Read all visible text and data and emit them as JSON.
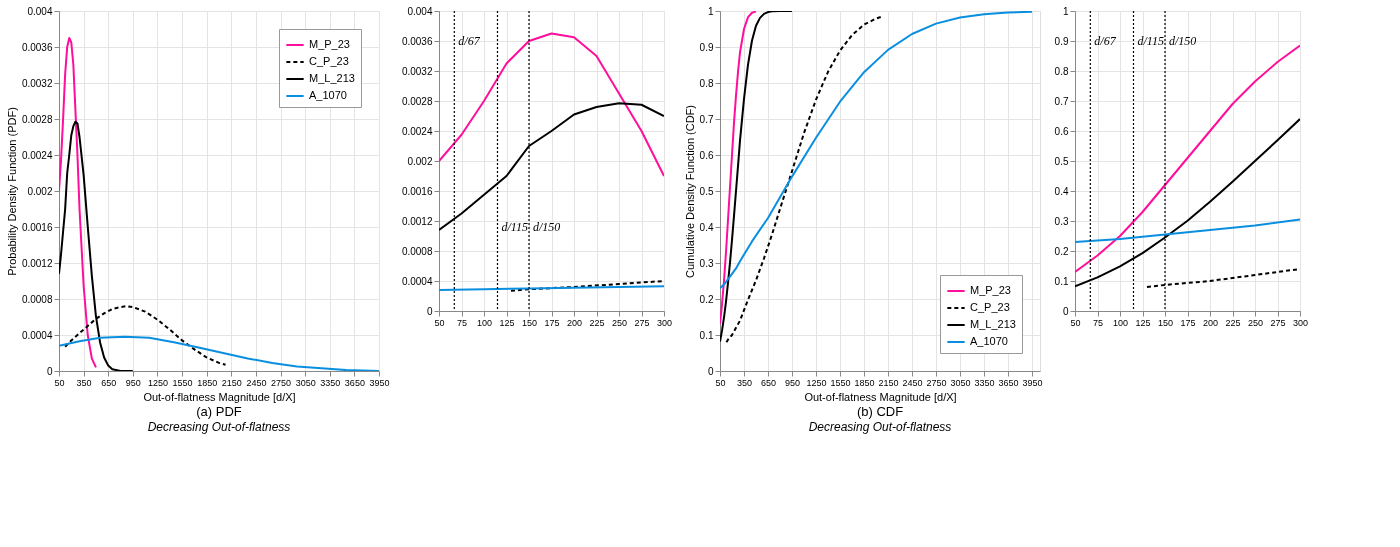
{
  "chart_data": [
    {
      "type": "line",
      "title": "(a) PDF",
      "xlabel": "Out-of-flatness Magnitude [d/X]",
      "ylabel": "Probability Density Function (PDF)",
      "annotations": [
        "Decreasing Out-of-flatness"
      ],
      "xlim": [
        50,
        3950
      ],
      "xticks": [
        50,
        350,
        650,
        950,
        1250,
        1550,
        1850,
        2150,
        2450,
        2750,
        3050,
        3350,
        3650,
        3950
      ],
      "ylim": [
        0,
        0.004
      ],
      "yticks": [
        0,
        0.0004,
        0.0008,
        0.0012,
        0.0016,
        0.002,
        0.0024,
        0.0028,
        0.0032,
        0.0036,
        0.004
      ],
      "grid": true,
      "legend": "top right",
      "series": [
        {
          "name": "M_P_23",
          "color": "#ff0d9b",
          "line_style": "solid",
          "x": [
            50,
            75,
            100,
            125,
            150,
            175,
            200,
            225,
            250,
            275,
            300,
            350,
            400,
            450,
            500
          ],
          "values": [
            0.002,
            0.00235,
            0.0028,
            0.0033,
            0.0036,
            0.0037,
            0.00365,
            0.0034,
            0.0029,
            0.0024,
            0.0018,
            0.00095,
            0.0004,
            0.00014,
            4e-05
          ]
        },
        {
          "name": "C_P_23",
          "color": "#000000",
          "line_style": "dashed",
          "x": [
            125,
            200,
            300,
            400,
            500,
            600,
            700,
            800,
            870,
            950,
            1100,
            1250,
            1400,
            1550,
            1700,
            1850,
            2000,
            2080
          ],
          "values": [
            0.00027,
            0.00034,
            0.00042,
            0.0005,
            0.00058,
            0.00064,
            0.00069,
            0.00071,
            0.00072,
            0.00071,
            0.00066,
            0.00057,
            0.00046,
            0.00034,
            0.00024,
            0.00015,
            9e-05,
            7e-05
          ]
        },
        {
          "name": "M_L_213",
          "color": "#000000",
          "line_style": "solid",
          "x": [
            50,
            75,
            100,
            125,
            150,
            175,
            200,
            225,
            250,
            275,
            300,
            350,
            400,
            450,
            500,
            550,
            600,
            650,
            700,
            800,
            950
          ],
          "values": [
            0.00108,
            0.0013,
            0.00155,
            0.0018,
            0.0022,
            0.0024,
            0.00262,
            0.00272,
            0.00277,
            0.00275,
            0.0026,
            0.00218,
            0.00161,
            0.00106,
            0.00061,
            0.00032,
            0.00015,
            6e-05,
            2e-05,
            0,
            0
          ]
        },
        {
          "name": "A_1070",
          "color": "#0a8fe0",
          "line_style": "solid",
          "x": [
            50,
            300,
            550,
            850,
            1150,
            1450,
            1750,
            2050,
            2350,
            2650,
            2950,
            3250,
            3550,
            3950
          ],
          "values": [
            0.00028,
            0.00033,
            0.00037,
            0.00038,
            0.00037,
            0.00032,
            0.00026,
            0.0002,
            0.00014,
            9e-05,
            5e-05,
            3e-05,
            1e-05,
            0
          ]
        }
      ]
    },
    {
      "type": "line",
      "xlim": [
        50,
        300
      ],
      "xticks": [
        50,
        75,
        100,
        125,
        150,
        175,
        200,
        225,
        250,
        275,
        300
      ],
      "ylim": [
        0,
        0.004
      ],
      "yticks": [
        0,
        0.0004,
        0.0008,
        0.0012,
        0.0016,
        0.002,
        0.0024,
        0.0028,
        0.0032,
        0.0036,
        0.004
      ],
      "grid": true,
      "ref_lines": [
        {
          "axis": "x",
          "value": 67,
          "label": "d/67",
          "line_style": "dotted",
          "color": "#000000"
        },
        {
          "axis": "x",
          "value": 115,
          "label": "d/115",
          "line_style": "dotted",
          "color": "#000000"
        },
        {
          "axis": "x",
          "value": 150,
          "label": "d/150",
          "line_style": "dotted",
          "color": "#000000"
        }
      ],
      "series": [
        {
          "color": "#ff0d9b",
          "line_style": "solid",
          "x": [
            50,
            75,
            100,
            125,
            150,
            175,
            200,
            225,
            250,
            275,
            300
          ],
          "values": [
            0.002,
            0.00235,
            0.0028,
            0.0033,
            0.0036,
            0.0037,
            0.00365,
            0.0034,
            0.0029,
            0.0024,
            0.0018
          ]
        },
        {
          "color": "#000000",
          "line_style": "dashed",
          "x": [
            130,
            150,
            200,
            250,
            300
          ],
          "values": [
            0.00027,
            0.00029,
            0.00032,
            0.00036,
            0.0004
          ]
        },
        {
          "color": "#000000",
          "line_style": "solid",
          "x": [
            50,
            75,
            100,
            125,
            150,
            175,
            200,
            225,
            250,
            275,
            300
          ],
          "values": [
            0.00108,
            0.0013,
            0.00155,
            0.0018,
            0.0022,
            0.0024,
            0.00262,
            0.00272,
            0.00277,
            0.00275,
            0.0026
          ]
        },
        {
          "color": "#0a8fe0",
          "line_style": "solid",
          "x": [
            50,
            100,
            150,
            200,
            250,
            300
          ],
          "values": [
            0.00028,
            0.00029,
            0.0003,
            0.00031,
            0.00032,
            0.00033
          ]
        }
      ]
    },
    {
      "type": "line",
      "title": "(b) CDF",
      "xlabel": "Out-of-flatness Magnitude [d/X]",
      "ylabel": "Cumulative Density Function (CDF)",
      "annotations": [
        "Decreasing Out-of-flatness"
      ],
      "xlim": [
        50,
        4050
      ],
      "xticks": [
        50,
        350,
        650,
        950,
        1250,
        1550,
        1850,
        2150,
        2450,
        2750,
        3050,
        3350,
        3650,
        3950
      ],
      "ylim": [
        0,
        1
      ],
      "yticks": [
        0,
        0.1,
        0.2,
        0.3,
        0.4,
        0.5,
        0.6,
        0.7,
        0.8,
        0.9,
        1
      ],
      "grid": true,
      "legend": "bottom right",
      "series": [
        {
          "name": "M_P_23",
          "color": "#ff0d9b",
          "line_style": "solid",
          "x": [
            50,
            75,
            100,
            125,
            150,
            175,
            200,
            225,
            250,
            275,
            300,
            350,
            400,
            450,
            500
          ],
          "values": [
            0.13,
            0.185,
            0.25,
            0.33,
            0.42,
            0.51,
            0.6,
            0.69,
            0.765,
            0.83,
            0.885,
            0.95,
            0.983,
            0.995,
            0.999
          ]
        },
        {
          "name": "C_P_23",
          "color": "#000000",
          "line_style": "dashed",
          "x": [
            130,
            150,
            200,
            250,
            300,
            400,
            500,
            600,
            700,
            800,
            950,
            1100,
            1250,
            1400,
            1550,
            1700,
            1850,
            2000,
            2080
          ],
          "values": [
            0.08,
            0.087,
            0.1,
            0.12,
            0.14,
            0.198,
            0.252,
            0.313,
            0.379,
            0.45,
            0.555,
            0.661,
            0.754,
            0.831,
            0.89,
            0.933,
            0.962,
            0.979,
            0.985
          ]
        },
        {
          "name": "M_L_213",
          "color": "#000000",
          "line_style": "solid",
          "x": [
            50,
            75,
            100,
            125,
            150,
            175,
            200,
            225,
            250,
            275,
            300,
            350,
            400,
            450,
            500,
            550,
            600,
            650,
            700,
            800,
            950
          ],
          "values": [
            0.082,
            0.112,
            0.149,
            0.193,
            0.245,
            0.301,
            0.364,
            0.431,
            0.5,
            0.569,
            0.64,
            0.756,
            0.851,
            0.918,
            0.959,
            0.981,
            0.992,
            0.997,
            0.999,
            1,
            1
          ]
        },
        {
          "name": "A_1070",
          "color": "#0a8fe0",
          "line_style": "solid",
          "x": [
            50,
            100,
            150,
            200,
            250,
            300,
            450,
            650,
            950,
            1250,
            1550,
            1850,
            2150,
            2450,
            2750,
            3050,
            3350,
            3650,
            3950
          ],
          "values": [
            0.23,
            0.24,
            0.255,
            0.27,
            0.285,
            0.305,
            0.36,
            0.425,
            0.54,
            0.648,
            0.748,
            0.83,
            0.892,
            0.936,
            0.965,
            0.982,
            0.991,
            0.996,
            0.998
          ]
        }
      ]
    },
    {
      "type": "line",
      "xlim": [
        50,
        300
      ],
      "xticks": [
        50,
        75,
        100,
        125,
        150,
        175,
        200,
        225,
        250,
        275,
        300
      ],
      "ylim": [
        0,
        1
      ],
      "yticks": [
        0,
        0.1,
        0.2,
        0.3,
        0.4,
        0.5,
        0.6,
        0.7,
        0.8,
        0.9,
        1
      ],
      "grid": true,
      "ref_lines": [
        {
          "axis": "x",
          "value": 67,
          "label": "d/67",
          "line_style": "dotted",
          "color": "#000000"
        },
        {
          "axis": "x",
          "value": 115,
          "label": "d/115",
          "line_style": "dotted",
          "color": "#000000"
        },
        {
          "axis": "x",
          "value": 150,
          "label": "d/150",
          "line_style": "dotted",
          "color": "#000000"
        }
      ],
      "series": [
        {
          "color": "#ff0d9b",
          "line_style": "solid",
          "x": [
            50,
            75,
            100,
            125,
            150,
            175,
            200,
            225,
            250,
            275,
            300
          ],
          "values": [
            0.13,
            0.185,
            0.25,
            0.33,
            0.42,
            0.51,
            0.6,
            0.69,
            0.765,
            0.83,
            0.885
          ]
        },
        {
          "color": "#000000",
          "line_style": "dashed",
          "x": [
            130,
            150,
            200,
            250,
            300
          ],
          "values": [
            0.08,
            0.087,
            0.1,
            0.12,
            0.14
          ]
        },
        {
          "color": "#000000",
          "line_style": "solid",
          "x": [
            50,
            75,
            100,
            125,
            150,
            175,
            200,
            225,
            250,
            275,
            300
          ],
          "values": [
            0.082,
            0.112,
            0.149,
            0.193,
            0.245,
            0.301,
            0.364,
            0.431,
            0.5,
            0.569,
            0.64
          ]
        },
        {
          "color": "#0a8fe0",
          "line_style": "solid",
          "x": [
            50,
            100,
            150,
            200,
            250,
            300
          ],
          "values": [
            0.23,
            0.24,
            0.255,
            0.27,
            0.285,
            0.305
          ]
        }
      ]
    }
  ]
}
